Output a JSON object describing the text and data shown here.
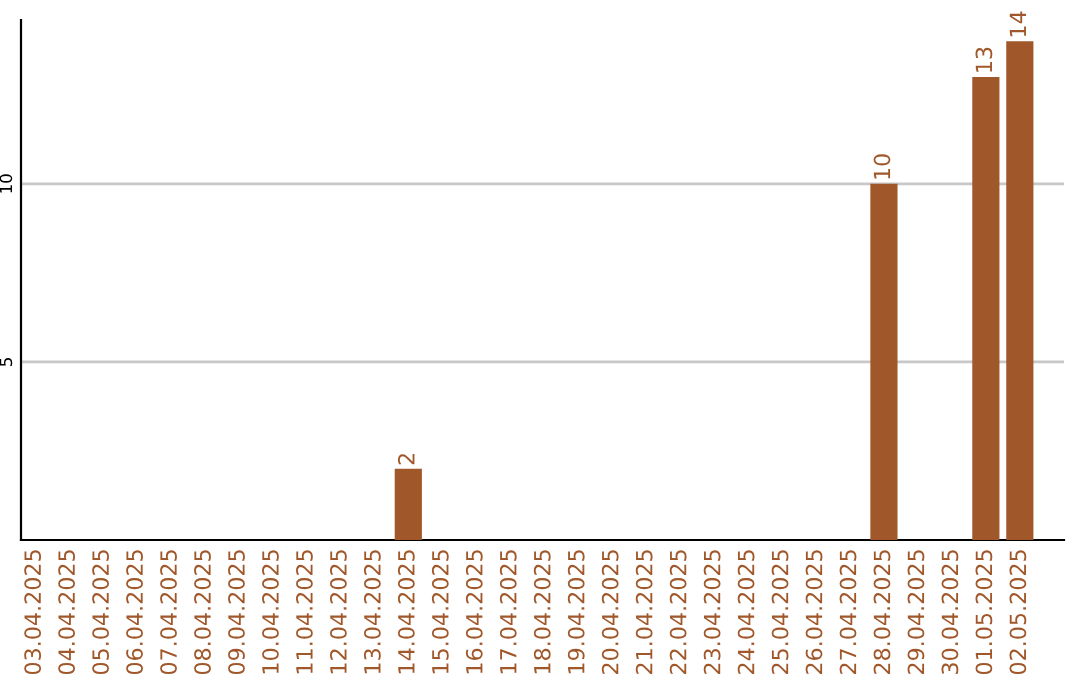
{
  "chart_data": {
    "type": "bar",
    "categories": [
      "03.04.2025",
      "04.04.2025",
      "05.04.2025",
      "06.04.2025",
      "07.04.2025",
      "08.04.2025",
      "09.04.2025",
      "10.04.2025",
      "11.04.2025",
      "12.04.2025",
      "13.04.2025",
      "14.04.2025",
      "15.04.2025",
      "16.04.2025",
      "17.04.2025",
      "18.04.2025",
      "19.04.2025",
      "20.04.2025",
      "21.04.2025",
      "22.04.2025",
      "23.04.2025",
      "24.04.2025",
      "25.04.2025",
      "26.04.2025",
      "27.04.2025",
      "28.04.2025",
      "29.04.2025",
      "30.04.2025",
      "01.05.2025",
      "02.05.2025"
    ],
    "values": [
      0,
      0,
      0,
      0,
      0,
      0,
      0,
      0,
      0,
      0,
      0,
      2,
      0,
      0,
      0,
      0,
      0,
      0,
      0,
      0,
      0,
      0,
      0,
      0,
      0,
      10,
      0,
      0,
      13,
      14
    ],
    "value_labels": [
      null,
      null,
      null,
      null,
      null,
      null,
      null,
      null,
      null,
      null,
      null,
      "2",
      null,
      null,
      null,
      null,
      null,
      null,
      null,
      null,
      null,
      null,
      null,
      null,
      null,
      "10",
      null,
      null,
      "13",
      "14"
    ],
    "color": "#a0572a",
    "ylim": [
      0,
      14.6
    ],
    "yticks": [
      5,
      10
    ],
    "grid": "y",
    "legend": false
  }
}
